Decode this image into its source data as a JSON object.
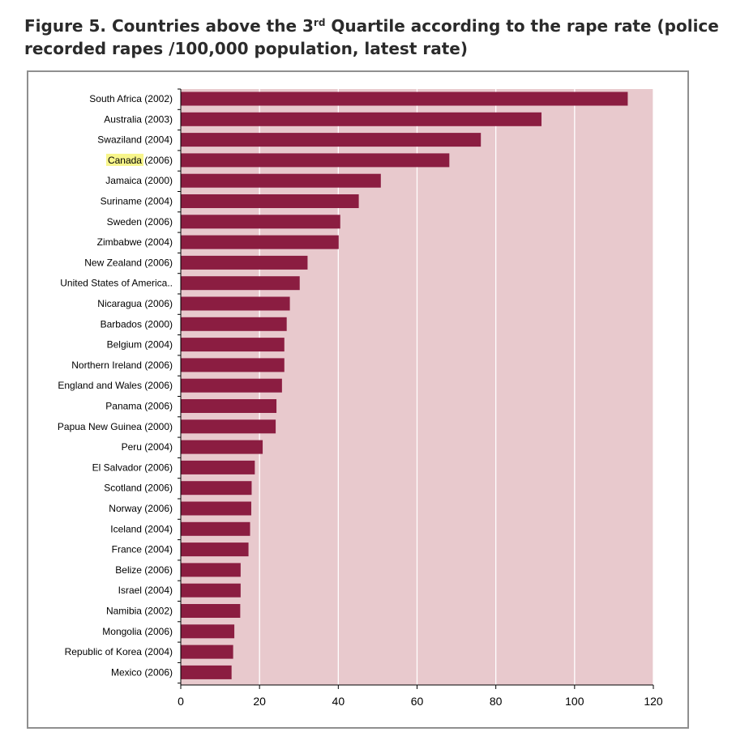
{
  "title": {
    "prefix": "Figure 5. Countries above the 3",
    "superscript": "rd",
    "suffix": " Quartile according to the rape rate (police recorded rapes /100,000 population, latest rate)"
  },
  "colors": {
    "bar": "#8b1d41",
    "plot_bg": "#e8c9cd",
    "gridline": "#ffffff",
    "highlight": "#f7f58a"
  },
  "chart_data": {
    "type": "bar",
    "orientation": "horizontal",
    "title": "",
    "xlabel": "",
    "ylabel": "",
    "xlim": [
      0,
      120
    ],
    "x_ticks": [
      0,
      20,
      40,
      60,
      80,
      100,
      120
    ],
    "grid": true,
    "legend": "none",
    "highlighted_category_word": "Canada",
    "categories": [
      "South Africa (2002)",
      "Australia (2003)",
      "Swaziland (2004)",
      "Canada (2006)",
      "Jamaica (2000)",
      "Suriname (2004)",
      "Sweden (2006)",
      "Zimbabwe (2004)",
      "New Zealand (2006)",
      "United States of America..",
      "Nicaragua (2006)",
      "Barbados (2000)",
      "Belgium (2004)",
      "Northern Ireland (2006)",
      "England and Wales (2006)",
      "Panama (2006)",
      "Papua New Guinea (2000)",
      "Peru (2004)",
      "El Salvador (2006)",
      "Scotland (2006)",
      "Norway (2006)",
      "Iceland (2004)",
      "France (2004)",
      "Belize (2006)",
      "Israel (2004)",
      "Namibia (2002)",
      "Mongolia (2006)",
      "Republic of Korea (2004)",
      "Mexico (2006)"
    ],
    "values": [
      113.5,
      91.6,
      76.2,
      68.2,
      50.8,
      45.2,
      40.5,
      40.1,
      32.2,
      30.2,
      27.7,
      26.9,
      26.3,
      26.3,
      25.7,
      24.3,
      24.1,
      20.8,
      18.8,
      18.0,
      17.9,
      17.6,
      17.2,
      15.2,
      15.2,
      15.1,
      13.6,
      13.3,
      12.9
    ]
  }
}
